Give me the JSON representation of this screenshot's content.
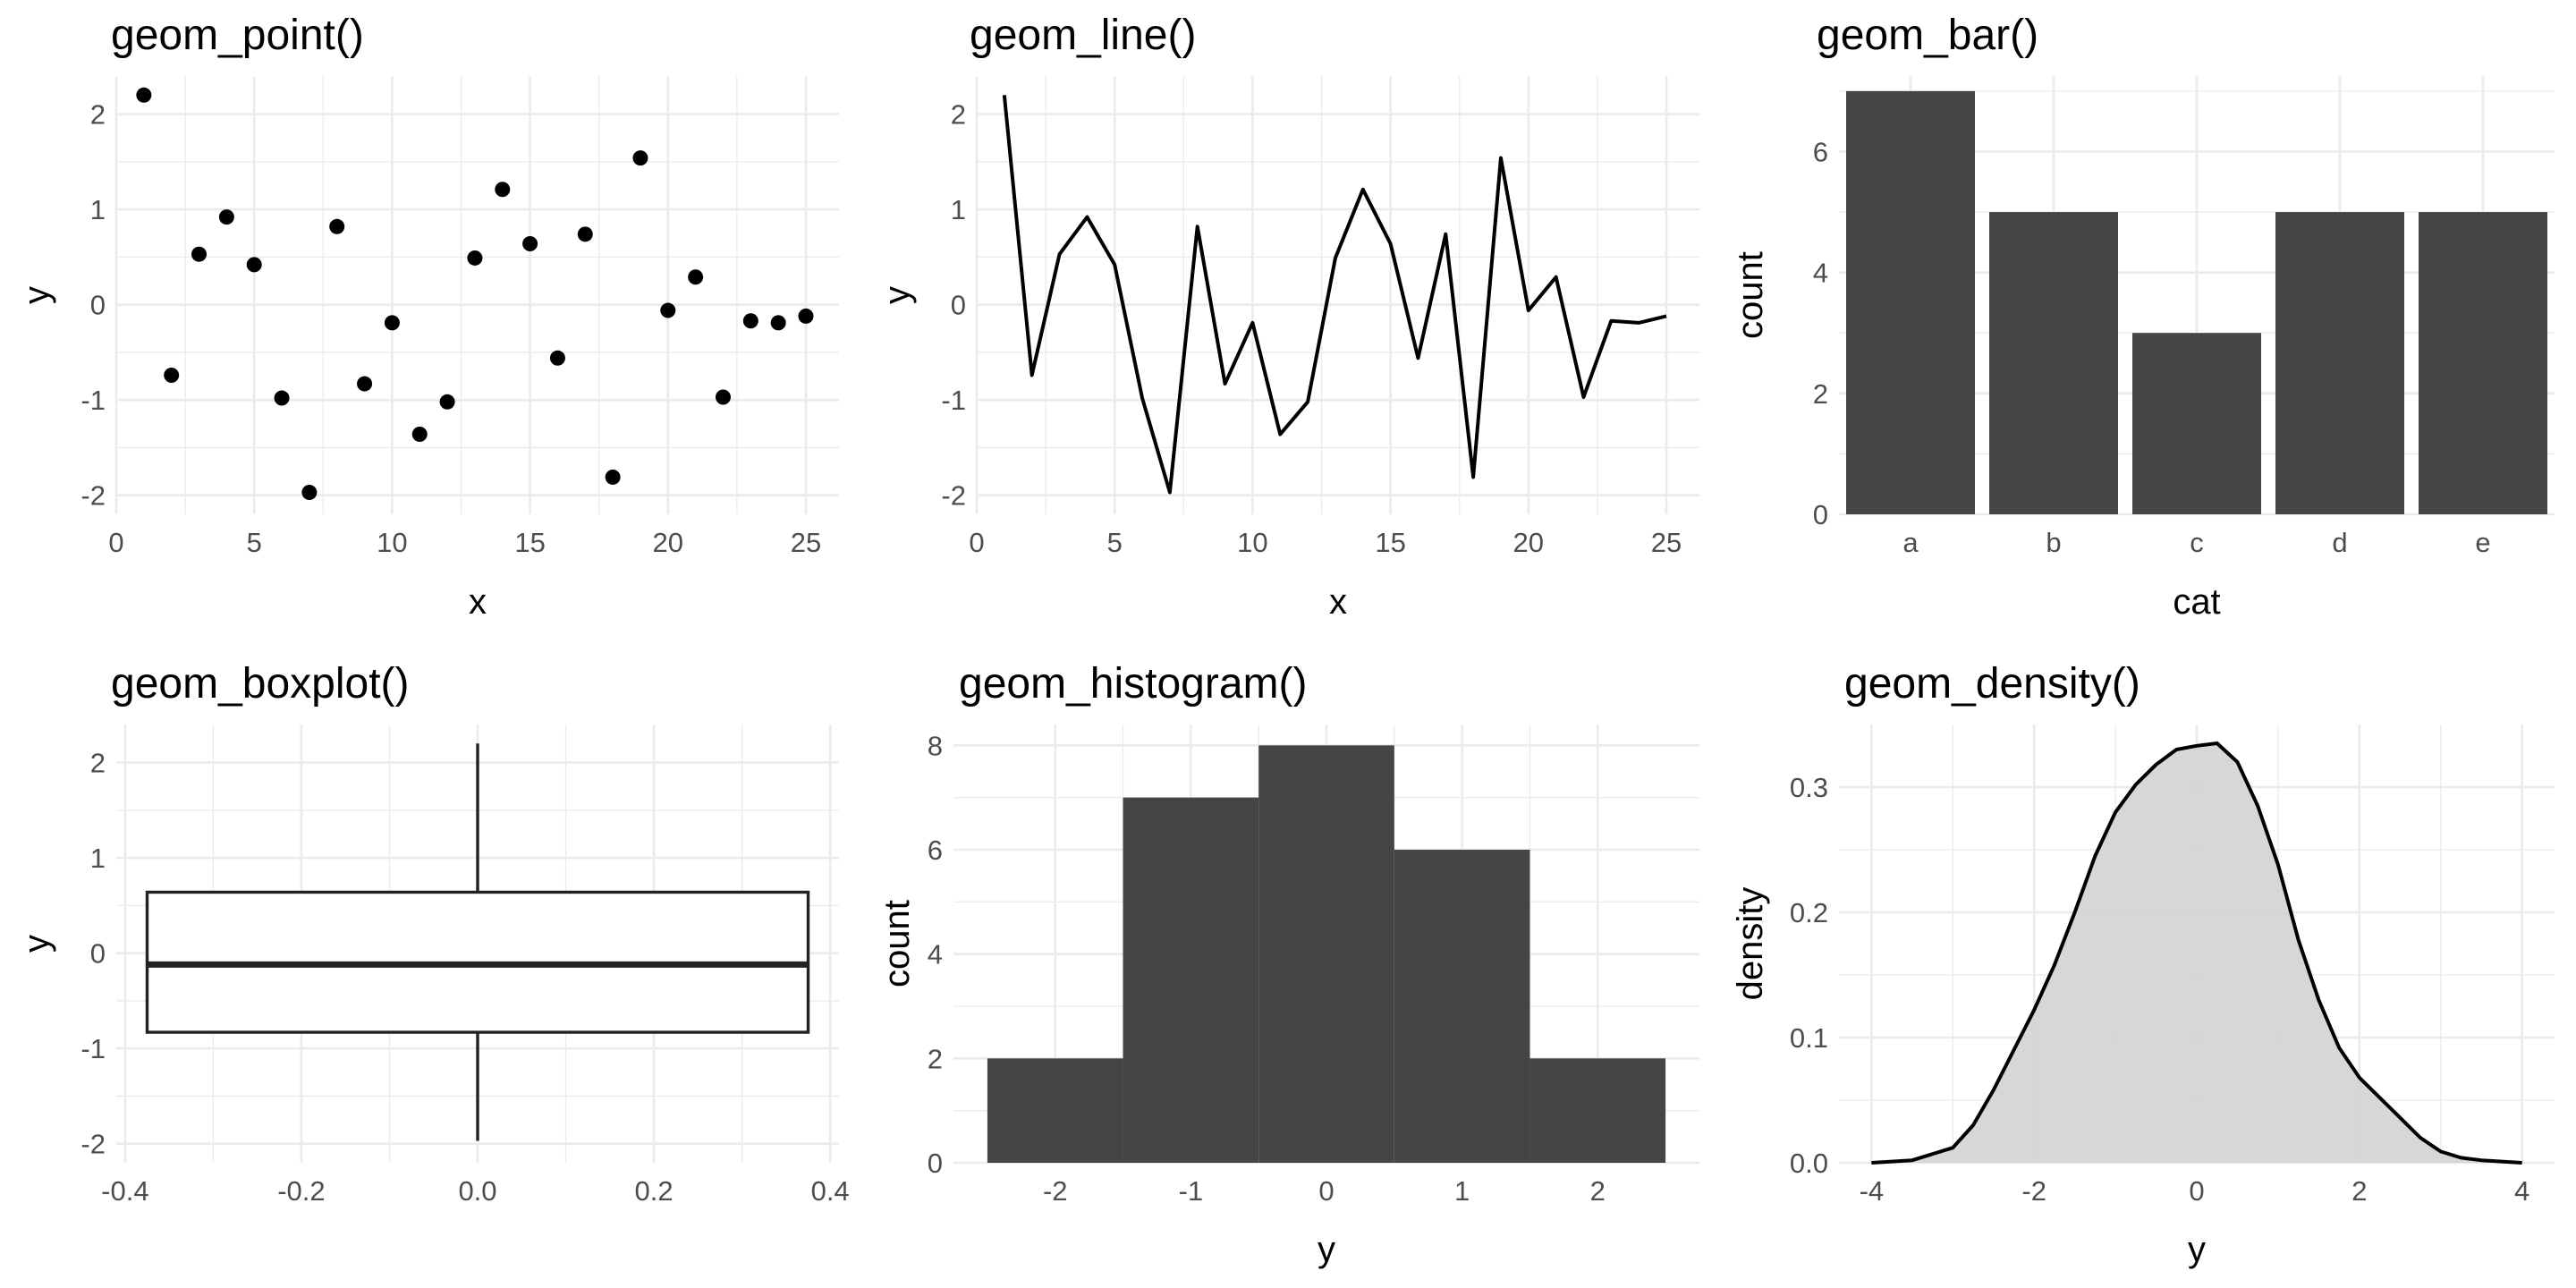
{
  "colors": {
    "mark": "#000000",
    "bar_fill": "#454545",
    "density_fill": "#d3d3d3",
    "grid": "#ebebeb",
    "tick_text": "#4d4d4d"
  },
  "chart_data": [
    {
      "id": "point",
      "type": "scatter",
      "title": "geom_point()",
      "xlabel": "x",
      "ylabel": "y",
      "xlim": [
        0,
        26.2
      ],
      "ylim": [
        -2.2,
        2.4
      ],
      "xticks": [
        0,
        5,
        10,
        15,
        20,
        25
      ],
      "xtick_labels": [
        "0",
        "5",
        "10",
        "15",
        "20",
        "25"
      ],
      "yticks": [
        -2,
        -1,
        0,
        1,
        2
      ],
      "ytick_labels": [
        "-2",
        "-1",
        "0",
        "1",
        "2"
      ],
      "grid": true,
      "x": [
        1,
        2,
        3,
        4,
        5,
        6,
        7,
        8,
        9,
        10,
        11,
        12,
        13,
        14,
        15,
        16,
        17,
        18,
        19,
        20,
        21,
        22,
        23,
        24,
        25
      ],
      "y": [
        2.2,
        -0.74,
        0.53,
        0.92,
        0.42,
        -0.98,
        -1.97,
        0.82,
        -0.83,
        -0.19,
        -1.36,
        -1.02,
        0.49,
        1.21,
        0.64,
        -0.56,
        0.74,
        -1.81,
        1.54,
        -0.06,
        0.29,
        -0.97,
        -0.17,
        -0.19,
        -0.12
      ]
    },
    {
      "id": "line",
      "type": "line",
      "title": "geom_line()",
      "xlabel": "x",
      "ylabel": "y",
      "xlim": [
        0,
        26.2
      ],
      "ylim": [
        -2.2,
        2.4
      ],
      "xticks": [
        0,
        5,
        10,
        15,
        20,
        25
      ],
      "xtick_labels": [
        "0",
        "5",
        "10",
        "15",
        "20",
        "25"
      ],
      "yticks": [
        -2,
        -1,
        0,
        1,
        2
      ],
      "ytick_labels": [
        "-2",
        "-1",
        "0",
        "1",
        "2"
      ],
      "grid": true,
      "x": [
        1,
        2,
        3,
        4,
        5,
        6,
        7,
        8,
        9,
        10,
        11,
        12,
        13,
        14,
        15,
        16,
        17,
        18,
        19,
        20,
        21,
        22,
        23,
        24,
        25
      ],
      "y": [
        2.2,
        -0.74,
        0.53,
        0.92,
        0.42,
        -0.98,
        -1.97,
        0.82,
        -0.83,
        -0.19,
        -1.36,
        -1.02,
        0.49,
        1.21,
        0.64,
        -0.56,
        0.74,
        -1.81,
        1.54,
        -0.06,
        0.29,
        -0.97,
        -0.17,
        -0.19,
        -0.12
      ]
    },
    {
      "id": "bar",
      "type": "bar",
      "title": "geom_bar()",
      "xlabel": "cat",
      "ylabel": "count",
      "categories": [
        "a",
        "b",
        "c",
        "d",
        "e"
      ],
      "values": [
        7,
        5,
        3,
        5,
        5
      ],
      "ylim": [
        0,
        7.25
      ],
      "yticks": [
        0,
        2,
        4,
        6
      ],
      "ytick_labels": [
        "0",
        "2",
        "4",
        "6"
      ],
      "grid": true
    },
    {
      "id": "boxplot",
      "type": "boxplot",
      "title": "geom_boxplot()",
      "xlabel": "",
      "ylabel": "y",
      "xlim": [
        -0.41,
        0.41
      ],
      "ylim": [
        -2.2,
        2.4
      ],
      "xticks": [
        -0.4,
        -0.2,
        0.0,
        0.2,
        0.4
      ],
      "xtick_labels": [
        "-0.4",
        "-0.2",
        "0.0",
        "0.2",
        "0.4"
      ],
      "yticks": [
        -2,
        -1,
        0,
        1,
        2
      ],
      "ytick_labels": [
        "-2",
        "-1",
        "0",
        "1",
        "2"
      ],
      "grid": true,
      "box": {
        "x_min": -0.375,
        "x_max": 0.375,
        "lower_whisker": -1.97,
        "q1": -0.83,
        "median": -0.12,
        "q3": 0.64,
        "upper_whisker": 2.2
      }
    },
    {
      "id": "histogram",
      "type": "histogram",
      "title": "geom_histogram()",
      "xlabel": "y",
      "ylabel": "count",
      "xlim": [
        -2.75,
        2.75
      ],
      "ylim": [
        0,
        8.4
      ],
      "xticks": [
        -2,
        -1,
        0,
        1,
        2
      ],
      "xtick_labels": [
        "-2",
        "-1",
        "0",
        "1",
        "2"
      ],
      "yticks": [
        0,
        2,
        4,
        6,
        8
      ],
      "ytick_labels": [
        "0",
        "2",
        "4",
        "6",
        "8"
      ],
      "grid": true,
      "bins": [
        {
          "x0": -2.5,
          "x1": -1.5,
          "count": 2
        },
        {
          "x0": -1.5,
          "x1": -0.5,
          "count": 7
        },
        {
          "x0": -0.5,
          "x1": 0.5,
          "count": 8
        },
        {
          "x0": 0.5,
          "x1": 1.5,
          "count": 6
        },
        {
          "x0": 1.5,
          "x1": 2.5,
          "count": 2
        }
      ]
    },
    {
      "id": "density",
      "type": "area",
      "title": "geom_density()",
      "xlabel": "y",
      "ylabel": "density",
      "xlim": [
        -4.4,
        4.4
      ],
      "ylim": [
        0,
        0.35
      ],
      "xticks": [
        -4,
        -2,
        0,
        2,
        4
      ],
      "xtick_labels": [
        "-4",
        "-2",
        "0",
        "2",
        "4"
      ],
      "yticks": [
        0.0,
        0.1,
        0.2,
        0.3
      ],
      "ytick_labels": [
        "0.0",
        "0.1",
        "0.2",
        "0.3"
      ],
      "grid": true,
      "x": [
        -4.0,
        -3.5,
        -3.0,
        -2.75,
        -2.5,
        -2.25,
        -2.0,
        -1.75,
        -1.5,
        -1.25,
        -1.0,
        -0.75,
        -0.5,
        -0.25,
        0.0,
        0.25,
        0.5,
        0.75,
        1.0,
        1.25,
        1.5,
        1.75,
        2.0,
        2.25,
        2.5,
        2.75,
        3.0,
        3.25,
        3.5,
        3.75,
        4.0
      ],
      "y": [
        0.0,
        0.002,
        0.012,
        0.03,
        0.058,
        0.09,
        0.122,
        0.158,
        0.2,
        0.245,
        0.28,
        0.302,
        0.318,
        0.33,
        0.333,
        0.335,
        0.32,
        0.285,
        0.238,
        0.178,
        0.13,
        0.092,
        0.068,
        0.052,
        0.036,
        0.02,
        0.009,
        0.004,
        0.002,
        0.001,
        0.0
      ]
    }
  ]
}
